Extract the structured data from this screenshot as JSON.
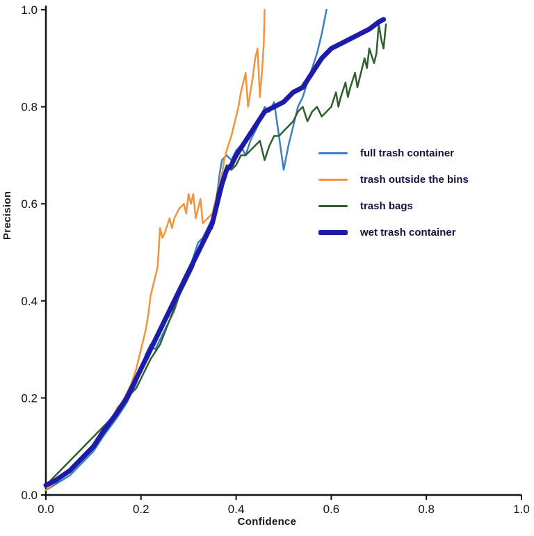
{
  "chart_data": {
    "type": "line",
    "title": "",
    "xlabel": "Confidence",
    "ylabel": "Precision",
    "xlim": [
      0.0,
      1.0
    ],
    "ylim": [
      0.0,
      1.0
    ],
    "grid": false,
    "legend_position": "center-right",
    "xtick_labels": [
      "0.0",
      "0.2",
      "0.4",
      "0.6",
      "0.8",
      "1.0"
    ],
    "xtick_values": [
      0.0,
      0.2,
      0.4,
      0.6,
      0.8,
      1.0
    ],
    "ytick_labels": [
      "0.0",
      "0.2",
      "0.4",
      "0.6",
      "0.8",
      "1.0"
    ],
    "ytick_values": [
      0.0,
      0.2,
      0.4,
      0.6,
      0.8,
      1.0
    ],
    "axis_color": "#111111",
    "series": [
      {
        "name": "full trash container",
        "color": "#3b7fc4",
        "line_width": 2.5,
        "points": [
          [
            0,
            0.01
          ],
          [
            0.05,
            0.04
          ],
          [
            0.08,
            0.07
          ],
          [
            0.1,
            0.09
          ],
          [
            0.12,
            0.12
          ],
          [
            0.15,
            0.16
          ],
          [
            0.17,
            0.19
          ],
          [
            0.19,
            0.23
          ],
          [
            0.2,
            0.26
          ],
          [
            0.21,
            0.29
          ],
          [
            0.22,
            0.31
          ],
          [
            0.23,
            0.3
          ],
          [
            0.24,
            0.32
          ],
          [
            0.25,
            0.34
          ],
          [
            0.27,
            0.38
          ],
          [
            0.28,
            0.41
          ],
          [
            0.3,
            0.46
          ],
          [
            0.31,
            0.49
          ],
          [
            0.32,
            0.52
          ],
          [
            0.33,
            0.53
          ],
          [
            0.34,
            0.55
          ],
          [
            0.35,
            0.57
          ],
          [
            0.36,
            0.62
          ],
          [
            0.365,
            0.66
          ],
          [
            0.37,
            0.69
          ],
          [
            0.38,
            0.7
          ],
          [
            0.39,
            0.69
          ],
          [
            0.4,
            0.71
          ],
          [
            0.41,
            0.72
          ],
          [
            0.42,
            0.7
          ],
          [
            0.43,
            0.73
          ],
          [
            0.44,
            0.75
          ],
          [
            0.45,
            0.77
          ],
          [
            0.46,
            0.8
          ],
          [
            0.47,
            0.79
          ],
          [
            0.48,
            0.81
          ],
          [
            0.49,
            0.74
          ],
          [
            0.5,
            0.67
          ],
          [
            0.51,
            0.72
          ],
          [
            0.52,
            0.76
          ],
          [
            0.53,
            0.8
          ],
          [
            0.54,
            0.82
          ],
          [
            0.55,
            0.85
          ],
          [
            0.56,
            0.88
          ],
          [
            0.57,
            0.91
          ],
          [
            0.58,
            0.95
          ],
          [
            0.59,
            1.0
          ]
        ]
      },
      {
        "name": "trash outside the bins",
        "color": "#f09440",
        "line_width": 2.5,
        "points": [
          [
            0,
            0.01
          ],
          [
            0.05,
            0.05
          ],
          [
            0.08,
            0.08
          ],
          [
            0.1,
            0.1
          ],
          [
            0.12,
            0.13
          ],
          [
            0.13,
            0.15
          ],
          [
            0.14,
            0.16
          ],
          [
            0.15,
            0.18
          ],
          [
            0.16,
            0.19
          ],
          [
            0.17,
            0.21
          ],
          [
            0.18,
            0.23
          ],
          [
            0.19,
            0.26
          ],
          [
            0.2,
            0.3
          ],
          [
            0.21,
            0.34
          ],
          [
            0.215,
            0.37
          ],
          [
            0.22,
            0.41
          ],
          [
            0.23,
            0.45
          ],
          [
            0.235,
            0.47
          ],
          [
            0.24,
            0.55
          ],
          [
            0.245,
            0.53
          ],
          [
            0.25,
            0.54
          ],
          [
            0.26,
            0.57
          ],
          [
            0.265,
            0.55
          ],
          [
            0.27,
            0.57
          ],
          [
            0.28,
            0.59
          ],
          [
            0.29,
            0.6
          ],
          [
            0.295,
            0.58
          ],
          [
            0.3,
            0.62
          ],
          [
            0.305,
            0.6
          ],
          [
            0.31,
            0.62
          ],
          [
            0.315,
            0.57
          ],
          [
            0.32,
            0.59
          ],
          [
            0.325,
            0.61
          ],
          [
            0.33,
            0.56
          ],
          [
            0.34,
            0.57
          ],
          [
            0.35,
            0.58
          ],
          [
            0.36,
            0.62
          ],
          [
            0.37,
            0.66
          ],
          [
            0.375,
            0.69
          ],
          [
            0.38,
            0.71
          ],
          [
            0.39,
            0.74
          ],
          [
            0.4,
            0.78
          ],
          [
            0.405,
            0.8
          ],
          [
            0.41,
            0.83
          ],
          [
            0.415,
            0.85
          ],
          [
            0.42,
            0.87
          ],
          [
            0.425,
            0.8
          ],
          [
            0.43,
            0.83
          ],
          [
            0.435,
            0.86
          ],
          [
            0.44,
            0.9
          ],
          [
            0.445,
            0.92
          ],
          [
            0.45,
            0.82
          ],
          [
            0.455,
            0.88
          ],
          [
            0.458,
            0.93
          ],
          [
            0.46,
            1.0
          ]
        ]
      },
      {
        "name": "trash bags",
        "color": "#2e5e2e",
        "line_width": 2.5,
        "points": [
          [
            0,
            0.02
          ],
          [
            0.03,
            0.05
          ],
          [
            0.05,
            0.07
          ],
          [
            0.08,
            0.1
          ],
          [
            0.1,
            0.12
          ],
          [
            0.12,
            0.14
          ],
          [
            0.15,
            0.17
          ],
          [
            0.17,
            0.2
          ],
          [
            0.19,
            0.22
          ],
          [
            0.2,
            0.24
          ],
          [
            0.22,
            0.28
          ],
          [
            0.24,
            0.31
          ],
          [
            0.26,
            0.36
          ],
          [
            0.28,
            0.41
          ],
          [
            0.3,
            0.45
          ],
          [
            0.31,
            0.47
          ],
          [
            0.32,
            0.5
          ],
          [
            0.33,
            0.52
          ],
          [
            0.34,
            0.54
          ],
          [
            0.35,
            0.55
          ],
          [
            0.355,
            0.58
          ],
          [
            0.36,
            0.62
          ],
          [
            0.37,
            0.65
          ],
          [
            0.38,
            0.68
          ],
          [
            0.39,
            0.67
          ],
          [
            0.4,
            0.68
          ],
          [
            0.41,
            0.7
          ],
          [
            0.42,
            0.7
          ],
          [
            0.43,
            0.71
          ],
          [
            0.44,
            0.72
          ],
          [
            0.45,
            0.73
          ],
          [
            0.46,
            0.69
          ],
          [
            0.47,
            0.72
          ],
          [
            0.48,
            0.74
          ],
          [
            0.49,
            0.74
          ],
          [
            0.5,
            0.75
          ],
          [
            0.51,
            0.76
          ],
          [
            0.52,
            0.77
          ],
          [
            0.53,
            0.79
          ],
          [
            0.54,
            0.8
          ],
          [
            0.55,
            0.77
          ],
          [
            0.56,
            0.79
          ],
          [
            0.57,
            0.8
          ],
          [
            0.58,
            0.78
          ],
          [
            0.59,
            0.79
          ],
          [
            0.6,
            0.8
          ],
          [
            0.61,
            0.83
          ],
          [
            0.615,
            0.8
          ],
          [
            0.62,
            0.82
          ],
          [
            0.63,
            0.85
          ],
          [
            0.635,
            0.82
          ],
          [
            0.64,
            0.84
          ],
          [
            0.65,
            0.87
          ],
          [
            0.655,
            0.84
          ],
          [
            0.66,
            0.86
          ],
          [
            0.67,
            0.9
          ],
          [
            0.675,
            0.88
          ],
          [
            0.68,
            0.92
          ],
          [
            0.69,
            0.89
          ],
          [
            0.695,
            0.91
          ],
          [
            0.7,
            0.97
          ],
          [
            0.705,
            0.94
          ],
          [
            0.71,
            0.92
          ],
          [
            0.715,
            0.97
          ]
        ]
      },
      {
        "name": "wet trash container",
        "color": "#1c1ca8",
        "line_width": 7,
        "points": [
          [
            0,
            0.02
          ],
          [
            0.02,
            0.03
          ],
          [
            0.05,
            0.05
          ],
          [
            0.08,
            0.08
          ],
          [
            0.1,
            0.1
          ],
          [
            0.12,
            0.13
          ],
          [
            0.15,
            0.17
          ],
          [
            0.17,
            0.2
          ],
          [
            0.19,
            0.24
          ],
          [
            0.2,
            0.26
          ],
          [
            0.22,
            0.3
          ],
          [
            0.24,
            0.34
          ],
          [
            0.26,
            0.38
          ],
          [
            0.28,
            0.42
          ],
          [
            0.3,
            0.46
          ],
          [
            0.32,
            0.5
          ],
          [
            0.34,
            0.54
          ],
          [
            0.35,
            0.56
          ],
          [
            0.36,
            0.6
          ],
          [
            0.37,
            0.64
          ],
          [
            0.38,
            0.67
          ],
          [
            0.39,
            0.68
          ],
          [
            0.4,
            0.7
          ],
          [
            0.42,
            0.73
          ],
          [
            0.44,
            0.76
          ],
          [
            0.46,
            0.79
          ],
          [
            0.48,
            0.8
          ],
          [
            0.5,
            0.81
          ],
          [
            0.52,
            0.83
          ],
          [
            0.54,
            0.84
          ],
          [
            0.56,
            0.87
          ],
          [
            0.58,
            0.9
          ],
          [
            0.6,
            0.92
          ],
          [
            0.62,
            0.93
          ],
          [
            0.64,
            0.94
          ],
          [
            0.66,
            0.95
          ],
          [
            0.68,
            0.96
          ],
          [
            0.7,
            0.975
          ],
          [
            0.71,
            0.98
          ]
        ]
      }
    ]
  }
}
